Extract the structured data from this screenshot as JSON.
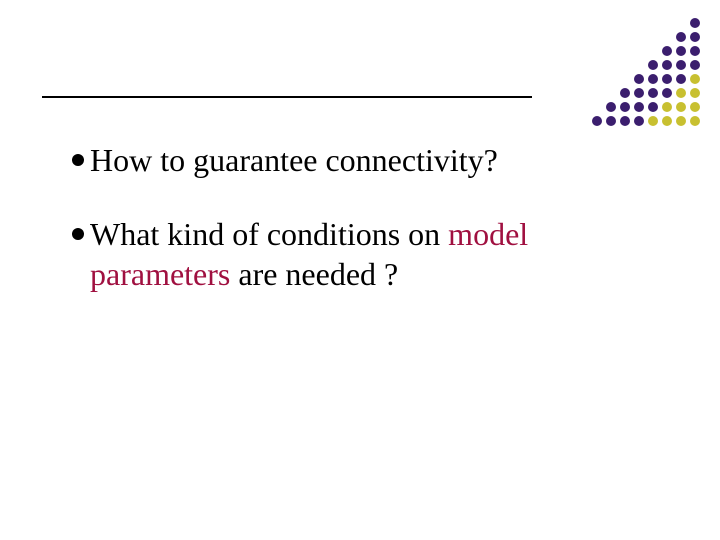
{
  "slide": {
    "bullets": [
      {
        "text_parts": [
          {
            "text": "How to guarantee connectivity?",
            "color": "#000000"
          }
        ]
      },
      {
        "text_parts": [
          {
            "text": "What kind of conditions on ",
            "color": "#000000"
          },
          {
            "text": "model parameters",
            "color": "#a01040"
          },
          {
            "text": " are needed ?",
            "color": "#000000"
          }
        ]
      }
    ],
    "header_line_color": "#000000",
    "background_color": "#ffffff",
    "bullet_color": "#000000",
    "font_size": 32
  },
  "decoration": {
    "dot_colors": {
      "dark": "#3b1e6e",
      "light": "#c8c030"
    },
    "grid": [
      [
        "",
        "",
        "",
        "",
        "",
        "",
        "",
        "d"
      ],
      [
        "",
        "",
        "",
        "",
        "",
        "",
        "d",
        "d"
      ],
      [
        "",
        "",
        "",
        "",
        "",
        "d",
        "d",
        "d"
      ],
      [
        "",
        "",
        "",
        "",
        "d",
        "d",
        "d",
        "d"
      ],
      [
        "",
        "",
        "",
        "d",
        "d",
        "d",
        "d",
        "l"
      ],
      [
        "",
        "",
        "d",
        "d",
        "d",
        "d",
        "l",
        "l"
      ],
      [
        "",
        "d",
        "d",
        "d",
        "d",
        "l",
        "l",
        "l"
      ],
      [
        "d",
        "d",
        "d",
        "d",
        "l",
        "l",
        "l",
        "l"
      ]
    ]
  }
}
